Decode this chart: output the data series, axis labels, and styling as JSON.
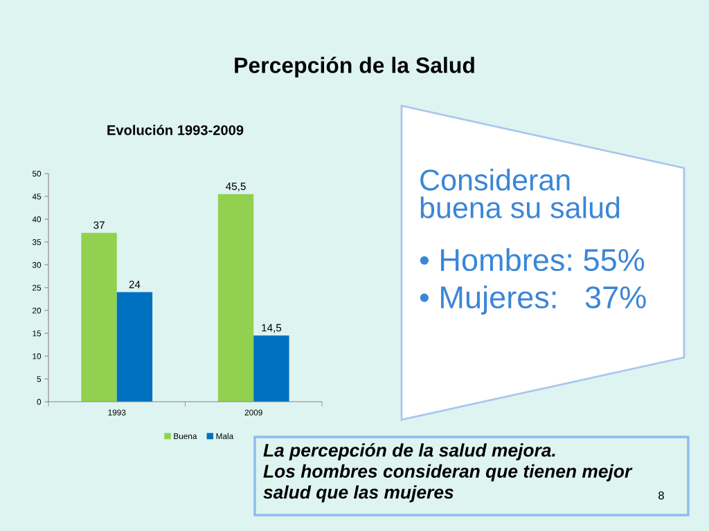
{
  "chart_data": {
    "type": "bar",
    "title": "Percepción de la Salud",
    "subtitle": "Evolución 1993-2009",
    "categories": [
      "1993",
      "2009"
    ],
    "series": [
      {
        "name": "Buena",
        "color": "#92d050",
        "values": [
          37,
          45.5
        ],
        "value_labels": [
          "37",
          "45,5"
        ]
      },
      {
        "name": "Mala",
        "color": "#0070c0",
        "values": [
          24,
          14.5
        ],
        "value_labels": [
          "24",
          "14,5"
        ]
      }
    ],
    "ylim": [
      0,
      50
    ],
    "yticks": [
      0,
      5,
      10,
      15,
      20,
      25,
      30,
      35,
      40,
      45,
      50
    ],
    "legend": "bottom",
    "annotations": [
      "Consideran buena su salud",
      "• Hombres: 55%",
      "• Mujeres:   37%",
      "La percepción de la salud mejora.\nLos hombres consideran que tienen mejor salud que las mujeres",
      "8"
    ]
  }
}
